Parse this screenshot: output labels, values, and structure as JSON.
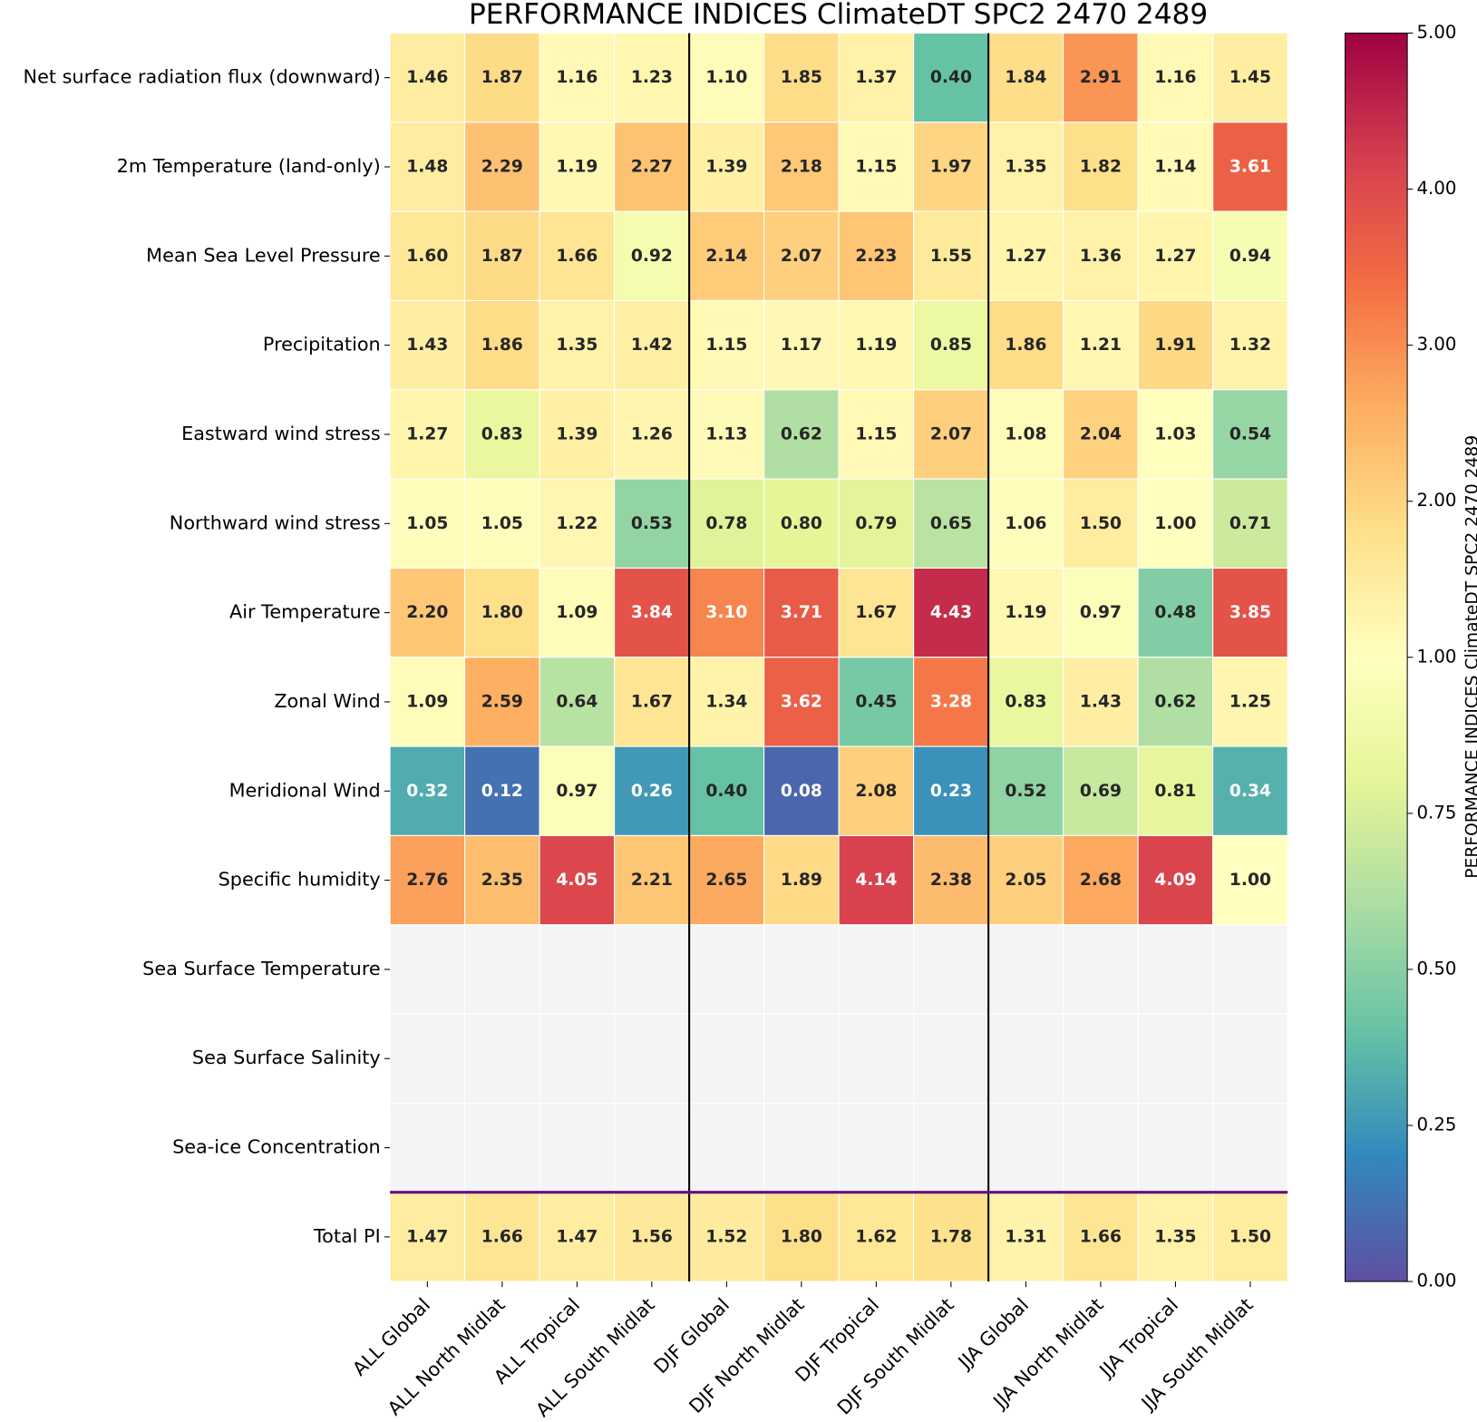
{
  "chart_data": {
    "type": "heatmap",
    "title": "PERFORMANCE INDICES ClimateDT SPC2 2470 2489",
    "colorbar_label": "PERFORMANCE INDICES ClimateDT SPC2 2470 2489",
    "colormap": "Spectral_r",
    "vcenter": 1,
    "rows": [
      "Net surface radiation flux (downward)",
      "2m Temperature (land-only)",
      "Mean Sea Level Pressure",
      "Precipitation",
      "Eastward wind stress",
      "Northward wind stress",
      "Air Temperature",
      "Zonal Wind",
      "Meridional Wind",
      "Specific humidity",
      "Sea Surface Temperature",
      "Sea Surface Salinity",
      "Sea-ice Concentration",
      "Total PI"
    ],
    "columns": [
      "ALL Global",
      "ALL North Midlat",
      "ALL Tropical",
      "ALL South Midlat",
      "DJF Global",
      "DJF North Midlat",
      "DJF Tropical",
      "DJF South Midlat",
      "JJA Global",
      "JJA North Midlat",
      "JJA Tropical",
      "JJA South Midlat"
    ],
    "values": [
      [
        1.46,
        1.87,
        1.16,
        1.23,
        1.1,
        1.85,
        1.37,
        0.4,
        1.84,
        2.91,
        1.16,
        1.45
      ],
      [
        1.48,
        2.29,
        1.19,
        2.27,
        1.39,
        2.18,
        1.15,
        1.97,
        1.35,
        1.82,
        1.14,
        3.61
      ],
      [
        1.6,
        1.87,
        1.66,
        0.92,
        2.14,
        2.07,
        2.23,
        1.55,
        1.27,
        1.36,
        1.27,
        0.94
      ],
      [
        1.43,
        1.86,
        1.35,
        1.42,
        1.15,
        1.17,
        1.19,
        0.85,
        1.86,
        1.21,
        1.91,
        1.32
      ],
      [
        1.27,
        0.83,
        1.39,
        1.26,
        1.13,
        0.62,
        1.15,
        2.07,
        1.08,
        2.04,
        1.03,
        0.54
      ],
      [
        1.05,
        1.05,
        1.22,
        0.53,
        0.78,
        0.8,
        0.79,
        0.65,
        1.06,
        1.5,
        1.0,
        0.71
      ],
      [
        2.2,
        1.8,
        1.09,
        3.84,
        3.1,
        3.71,
        1.67,
        4.43,
        1.19,
        0.97,
        0.48,
        3.85
      ],
      [
        1.09,
        2.59,
        0.64,
        1.67,
        1.34,
        3.62,
        0.45,
        3.28,
        0.83,
        1.43,
        0.62,
        1.25
      ],
      [
        0.32,
        0.12,
        0.97,
        0.26,
        0.4,
        0.08,
        2.08,
        0.23,
        0.52,
        0.69,
        0.81,
        0.34
      ],
      [
        2.76,
        2.35,
        4.05,
        2.21,
        2.65,
        1.89,
        4.14,
        2.38,
        2.05,
        2.68,
        4.09,
        1.0
      ],
      [
        null,
        null,
        null,
        null,
        null,
        null,
        null,
        null,
        null,
        null,
        null,
        null
      ],
      [
        null,
        null,
        null,
        null,
        null,
        null,
        null,
        null,
        null,
        null,
        null,
        null
      ],
      [
        null,
        null,
        null,
        null,
        null,
        null,
        null,
        null,
        null,
        null,
        null,
        null
      ],
      [
        1.47,
        1.66,
        1.47,
        1.56,
        1.52,
        1.8,
        1.62,
        1.78,
        1.31,
        1.66,
        1.35,
        1.5
      ]
    ],
    "value_labels": [
      [
        "1.46",
        "1.87",
        "1.16",
        "1.23",
        "1.10",
        "1.85",
        "1.37",
        "0.40",
        "1.84",
        "2.91",
        "1.16",
        "1.45"
      ],
      [
        "1.48",
        "2.29",
        "1.19",
        "2.27",
        "1.39",
        "2.18",
        "1.15",
        "1.97",
        "1.35",
        "1.82",
        "1.14",
        "3.61"
      ],
      [
        "1.60",
        "1.87",
        "1.66",
        "0.92",
        "2.14",
        "2.07",
        "2.23",
        "1.55",
        "1.27",
        "1.36",
        "1.27",
        "0.94"
      ],
      [
        "1.43",
        "1.86",
        "1.35",
        "1.42",
        "1.15",
        "1.17",
        "1.19",
        "0.85",
        "1.86",
        "1.21",
        "1.91",
        "1.32"
      ],
      [
        "1.27",
        "0.83",
        "1.39",
        "1.26",
        "1.13",
        "0.62",
        "1.15",
        "2.07",
        "1.08",
        "2.04",
        "1.03",
        "0.54"
      ],
      [
        "1.05",
        "1.05",
        "1.22",
        "0.53",
        "0.78",
        "0.80",
        "0.79",
        "0.65",
        "1.06",
        "1.50",
        "1.00",
        "0.71"
      ],
      [
        "2.20",
        "1.80",
        "1.09",
        "3.84",
        "3.10",
        "3.71",
        "1.67",
        "4.43",
        "1.19",
        "0.97",
        "0.48",
        "3.85"
      ],
      [
        "1.09",
        "2.59",
        "0.64",
        "1.67",
        "1.34",
        "3.62",
        "0.45",
        "3.28",
        "0.83",
        "1.43",
        "0.62",
        "1.25"
      ],
      [
        "0.32",
        "0.12",
        "0.97",
        "0.26",
        "0.40",
        "0.08",
        "2.08",
        "0.23",
        "0.52",
        "0.69",
        "0.81",
        "0.34"
      ],
      [
        "2.76",
        "2.35",
        "4.05",
        "2.21",
        "2.65",
        "1.89",
        "4.14",
        "2.38",
        "2.05",
        "2.68",
        "4.09",
        "1.00"
      ],
      [
        null,
        null,
        null,
        null,
        null,
        null,
        null,
        null,
        null,
        null,
        null,
        null
      ],
      [
        null,
        null,
        null,
        null,
        null,
        null,
        null,
        null,
        null,
        null,
        null,
        null
      ],
      [
        null,
        null,
        null,
        null,
        null,
        null,
        null,
        null,
        null,
        null,
        null,
        null
      ],
      [
        "1.47",
        "1.66",
        "1.47",
        "1.56",
        "1.52",
        "1.80",
        "1.62",
        "1.78",
        "1.31",
        "1.66",
        "1.35",
        "1.50"
      ]
    ],
    "clim": [
      0,
      5
    ],
    "cticks": [
      {
        "value": 0,
        "label": "0.00"
      },
      {
        "value": 0.25,
        "label": "0.25"
      },
      {
        "value": 0.5,
        "label": "0.50"
      },
      {
        "value": 0.75,
        "label": "0.75"
      },
      {
        "value": 1,
        "label": "1.00"
      },
      {
        "value": 2,
        "label": "2.00"
      },
      {
        "value": 3,
        "label": "3.00"
      },
      {
        "value": 4,
        "label": "4.00"
      },
      {
        "value": 5,
        "label": "5.00"
      }
    ]
  }
}
